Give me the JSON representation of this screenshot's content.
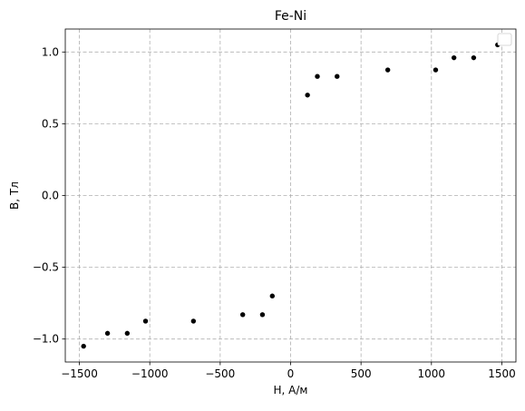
{
  "chart_data": {
    "type": "scatter",
    "title": "Fe-Ni",
    "xlabel": "H, А/м",
    "ylabel": "B, Тл",
    "xlim": [
      -1600,
      1600
    ],
    "ylim": [
      -1.16,
      1.16
    ],
    "xticks": [
      -1500,
      -1000,
      -500,
      0,
      500,
      1000,
      1500
    ],
    "yticks": [
      -1.0,
      -0.5,
      0.0,
      0.5,
      1.0
    ],
    "xtick_labels": [
      "−1500",
      "−1000",
      "−500",
      "0",
      "500",
      "1000",
      "1500"
    ],
    "ytick_labels": [
      "−1.0",
      "−0.5",
      "0.0",
      "0.5",
      "1.0"
    ],
    "grid": true,
    "legend": {
      "location": "top-right",
      "entries": []
    },
    "marker_color": "#000000",
    "x": [
      -1470,
      -1300,
      -1160,
      -1030,
      -690,
      -340,
      -200,
      -130,
      120,
      190,
      330,
      690,
      1030,
      1160,
      1300,
      1470
    ],
    "y": [
      -1.05,
      -0.96,
      -0.96,
      -0.875,
      -0.875,
      -0.83,
      -0.83,
      -0.7,
      0.7,
      0.83,
      0.83,
      0.875,
      0.875,
      0.96,
      0.96,
      1.05
    ]
  }
}
